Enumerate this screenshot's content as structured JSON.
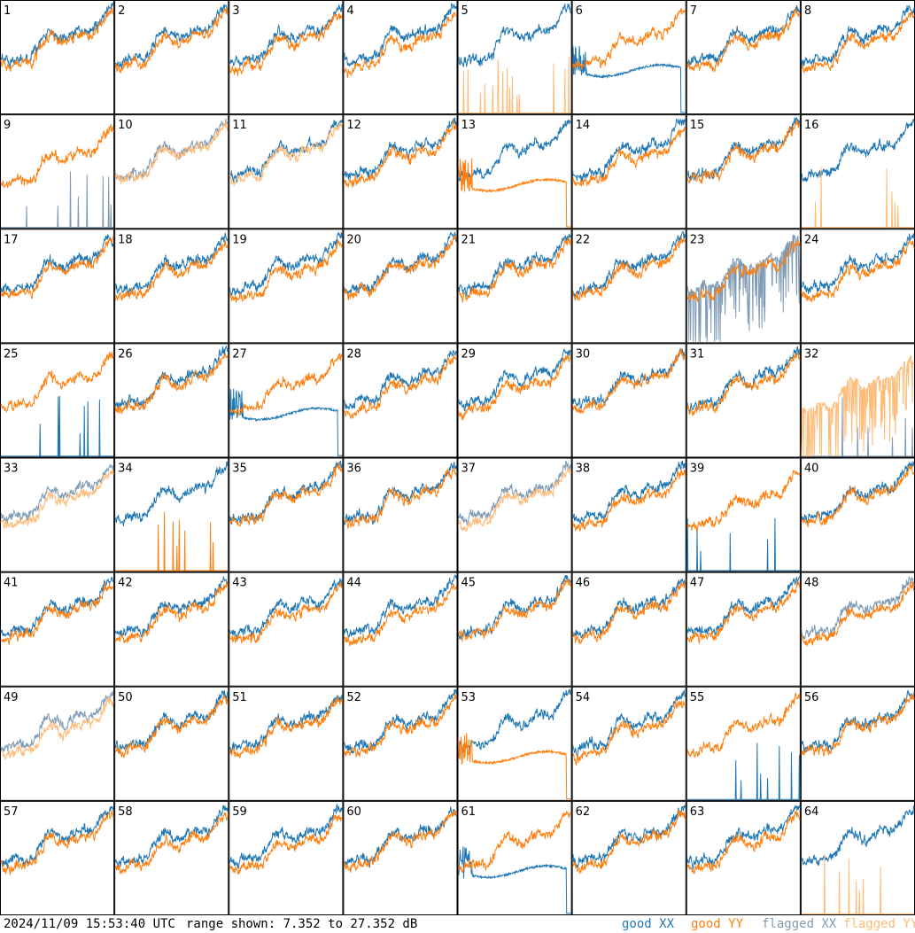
{
  "footer": {
    "timestamp": "2024/11/09 15:53:40 UTC",
    "range_text": "range shown: 7.352 to 27.352 dB"
  },
  "legend": [
    {
      "label": "good XX",
      "color": "#1f77b4"
    },
    {
      "label": "good YY",
      "color": "#ff7f0e"
    },
    {
      "label": "flagged XX",
      "color": "#7f9bb5"
    },
    {
      "label": "flagged YY",
      "color": "#ffbb78"
    }
  ],
  "chart_data": {
    "type": "line",
    "grid": {
      "rows": 8,
      "cols": 8
    },
    "ylim": [
      7.352,
      27.352
    ],
    "unit": "dB",
    "panels": [
      {
        "id": "1",
        "xx": "good",
        "yy": "good",
        "x_mode": "normal",
        "y_mode": "normal"
      },
      {
        "id": "2",
        "xx": "good",
        "yy": "good",
        "x_mode": "normal",
        "y_mode": "normal"
      },
      {
        "id": "3",
        "xx": "good",
        "yy": "good",
        "x_mode": "normal",
        "y_mode": "normal"
      },
      {
        "id": "4",
        "xx": "good",
        "yy": "good",
        "x_mode": "normal",
        "y_mode": "normal"
      },
      {
        "id": "5",
        "xx": "good",
        "yy": "flagged",
        "x_mode": "normal",
        "y_mode": "spikes"
      },
      {
        "id": "6",
        "xx": "good",
        "yy": "good",
        "x_mode": "low",
        "y_mode": "normal"
      },
      {
        "id": "7",
        "xx": "good",
        "yy": "good",
        "x_mode": "normal",
        "y_mode": "normal"
      },
      {
        "id": "8",
        "xx": "good",
        "yy": "good",
        "x_mode": "normal",
        "y_mode": "normal"
      },
      {
        "id": "9",
        "xx": "flagged",
        "yy": "good",
        "x_mode": "spikes",
        "y_mode": "normal"
      },
      {
        "id": "10",
        "xx": "flagged",
        "yy": "flagged",
        "x_mode": "normal",
        "y_mode": "normal"
      },
      {
        "id": "11",
        "xx": "good",
        "yy": "flagged",
        "x_mode": "normal",
        "y_mode": "normal"
      },
      {
        "id": "12",
        "xx": "good",
        "yy": "good",
        "x_mode": "normal",
        "y_mode": "normal"
      },
      {
        "id": "13",
        "xx": "good",
        "yy": "good",
        "x_mode": "normal",
        "y_mode": "low"
      },
      {
        "id": "14",
        "xx": "good",
        "yy": "good",
        "x_mode": "normal",
        "y_mode": "normal"
      },
      {
        "id": "15",
        "xx": "good",
        "yy": "good",
        "x_mode": "normal",
        "y_mode": "normal"
      },
      {
        "id": "16",
        "xx": "good",
        "yy": "flagged",
        "x_mode": "normal",
        "y_mode": "spikes"
      },
      {
        "id": "17",
        "xx": "good",
        "yy": "good",
        "x_mode": "normal",
        "y_mode": "normal"
      },
      {
        "id": "18",
        "xx": "good",
        "yy": "good",
        "x_mode": "normal",
        "y_mode": "normal"
      },
      {
        "id": "19",
        "xx": "good",
        "yy": "good",
        "x_mode": "normal",
        "y_mode": "normal"
      },
      {
        "id": "20",
        "xx": "good",
        "yy": "good",
        "x_mode": "normal",
        "y_mode": "normal"
      },
      {
        "id": "21",
        "xx": "good",
        "yy": "good",
        "x_mode": "normal",
        "y_mode": "normal"
      },
      {
        "id": "22",
        "xx": "good",
        "yy": "good",
        "x_mode": "normal",
        "y_mode": "normal"
      },
      {
        "id": "23",
        "xx": "flagged",
        "yy": "good",
        "x_mode": "noisy",
        "y_mode": "normal"
      },
      {
        "id": "24",
        "xx": "good",
        "yy": "good",
        "x_mode": "normal",
        "y_mode": "normal"
      },
      {
        "id": "25",
        "xx": "good",
        "yy": "good",
        "x_mode": "spikes",
        "y_mode": "normal"
      },
      {
        "id": "26",
        "xx": "good",
        "yy": "good",
        "x_mode": "normal",
        "y_mode": "normal"
      },
      {
        "id": "27",
        "xx": "good",
        "yy": "good",
        "x_mode": "low",
        "y_mode": "normal"
      },
      {
        "id": "28",
        "xx": "good",
        "yy": "good",
        "x_mode": "normal",
        "y_mode": "normal"
      },
      {
        "id": "29",
        "xx": "good",
        "yy": "good",
        "x_mode": "normal",
        "y_mode": "normal"
      },
      {
        "id": "30",
        "xx": "good",
        "yy": "good",
        "x_mode": "normal",
        "y_mode": "normal"
      },
      {
        "id": "31",
        "xx": "good",
        "yy": "good",
        "x_mode": "normal",
        "y_mode": "normal"
      },
      {
        "id": "32",
        "xx": "flagged",
        "yy": "flagged",
        "x_mode": "spikes",
        "y_mode": "noisy"
      },
      {
        "id": "33",
        "xx": "flagged",
        "yy": "flagged",
        "x_mode": "normal",
        "y_mode": "normal"
      },
      {
        "id": "34",
        "xx": "good",
        "yy": "good",
        "x_mode": "normal",
        "y_mode": "spikes"
      },
      {
        "id": "35",
        "xx": "good",
        "yy": "good",
        "x_mode": "normal",
        "y_mode": "normal"
      },
      {
        "id": "36",
        "xx": "good",
        "yy": "good",
        "x_mode": "normal",
        "y_mode": "normal"
      },
      {
        "id": "37",
        "xx": "flagged",
        "yy": "flagged",
        "x_mode": "normal",
        "y_mode": "normal"
      },
      {
        "id": "38",
        "xx": "good",
        "yy": "good",
        "x_mode": "normal",
        "y_mode": "normal"
      },
      {
        "id": "39",
        "xx": "good",
        "yy": "good",
        "x_mode": "spikes",
        "y_mode": "normal"
      },
      {
        "id": "40",
        "xx": "good",
        "yy": "good",
        "x_mode": "normal",
        "y_mode": "normal"
      },
      {
        "id": "41",
        "xx": "good",
        "yy": "good",
        "x_mode": "normal",
        "y_mode": "normal"
      },
      {
        "id": "42",
        "xx": "good",
        "yy": "good",
        "x_mode": "normal",
        "y_mode": "normal"
      },
      {
        "id": "43",
        "xx": "good",
        "yy": "good",
        "x_mode": "normal",
        "y_mode": "normal"
      },
      {
        "id": "44",
        "xx": "good",
        "yy": "good",
        "x_mode": "normal",
        "y_mode": "normal"
      },
      {
        "id": "45",
        "xx": "good",
        "yy": "good",
        "x_mode": "normal",
        "y_mode": "normal"
      },
      {
        "id": "46",
        "xx": "good",
        "yy": "good",
        "x_mode": "normal",
        "y_mode": "normal"
      },
      {
        "id": "47",
        "xx": "good",
        "yy": "good",
        "x_mode": "normal",
        "y_mode": "normal"
      },
      {
        "id": "48",
        "xx": "flagged",
        "yy": "good",
        "x_mode": "normal",
        "y_mode": "normal"
      },
      {
        "id": "49",
        "xx": "flagged",
        "yy": "flagged",
        "x_mode": "normal",
        "y_mode": "normal"
      },
      {
        "id": "50",
        "xx": "good",
        "yy": "good",
        "x_mode": "normal",
        "y_mode": "normal"
      },
      {
        "id": "51",
        "xx": "good",
        "yy": "good",
        "x_mode": "normal",
        "y_mode": "normal"
      },
      {
        "id": "52",
        "xx": "good",
        "yy": "good",
        "x_mode": "normal",
        "y_mode": "normal"
      },
      {
        "id": "53",
        "xx": "good",
        "yy": "good",
        "x_mode": "normal",
        "y_mode": "low"
      },
      {
        "id": "54",
        "xx": "good",
        "yy": "good",
        "x_mode": "normal",
        "y_mode": "normal"
      },
      {
        "id": "55",
        "xx": "good",
        "yy": "good",
        "x_mode": "spikes",
        "y_mode": "normal"
      },
      {
        "id": "56",
        "xx": "good",
        "yy": "good",
        "x_mode": "normal",
        "y_mode": "normal"
      },
      {
        "id": "57",
        "xx": "good",
        "yy": "good",
        "x_mode": "normal",
        "y_mode": "normal"
      },
      {
        "id": "58",
        "xx": "good",
        "yy": "good",
        "x_mode": "normal",
        "y_mode": "normal"
      },
      {
        "id": "59",
        "xx": "good",
        "yy": "good",
        "x_mode": "normal",
        "y_mode": "normal"
      },
      {
        "id": "60",
        "xx": "good",
        "yy": "good",
        "x_mode": "normal",
        "y_mode": "normal"
      },
      {
        "id": "61",
        "xx": "good",
        "yy": "good",
        "x_mode": "low",
        "y_mode": "normal"
      },
      {
        "id": "62",
        "xx": "good",
        "yy": "good",
        "x_mode": "normal",
        "y_mode": "normal"
      },
      {
        "id": "63",
        "xx": "good",
        "yy": "good",
        "x_mode": "normal",
        "y_mode": "normal"
      },
      {
        "id": "64",
        "xx": "good",
        "yy": "flagged",
        "x_mode": "normal",
        "y_mode": "spikes"
      }
    ]
  }
}
